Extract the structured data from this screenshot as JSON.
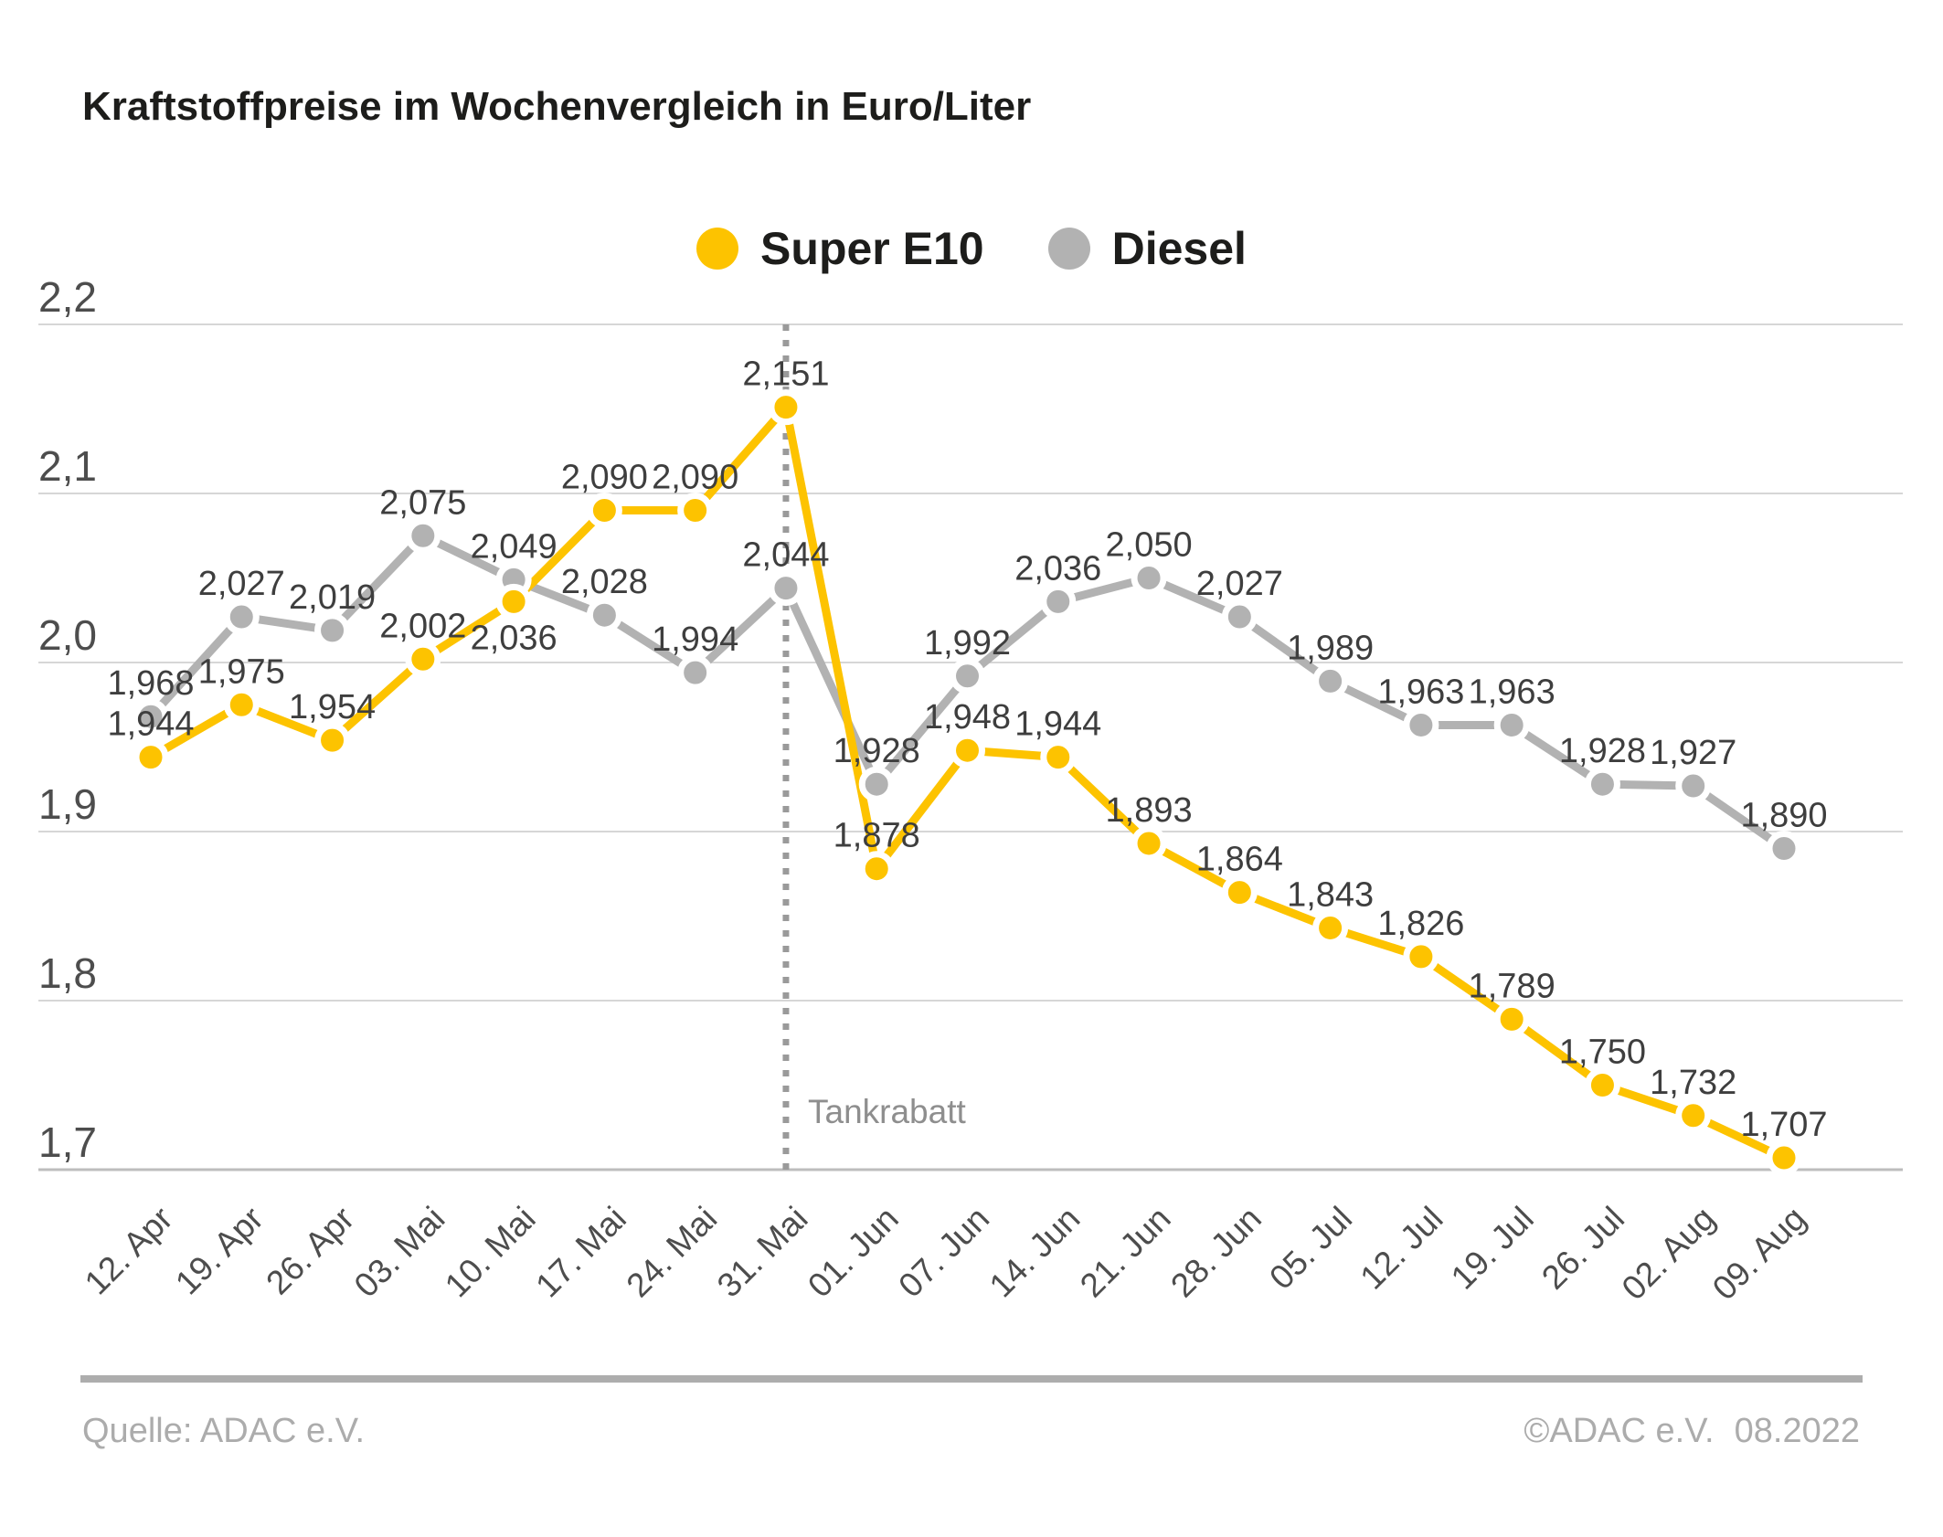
{
  "title": "Kraftstoffpreise im Wochenvergleich in Euro/Liter",
  "legend": {
    "items": [
      {
        "label": "Super E10",
        "color": "#fdc300"
      },
      {
        "label": "Diesel",
        "color": "#b2b2b2"
      }
    ]
  },
  "chart_data": {
    "type": "line",
    "title": "Kraftstoffpreise im Wochenvergleich in Euro/Liter",
    "xlabel": "",
    "ylabel": "Euro/Liter",
    "ylim": [
      1.7,
      2.2
    ],
    "grid": true,
    "legend_position": "top-center",
    "y_ticks": [
      "2,2",
      "2,1",
      "2,0",
      "1,9",
      "1,8",
      "1,7"
    ],
    "y_tick_values": [
      2.2,
      2.1,
      2.0,
      1.9,
      1.8,
      1.7
    ],
    "categories": [
      "12. Apr",
      "19. Apr",
      "26. Apr",
      "03. Mai",
      "10. Mai",
      "17. Mai",
      "24. Mai",
      "31. Mai",
      "01. Jun",
      "07. Jun",
      "14. Jun",
      "21. Jun",
      "28. Jun",
      "05. Jul",
      "12. Jul",
      "19. Jul",
      "26. Jul",
      "02. Aug",
      "09. Aug"
    ],
    "series": [
      {
        "name": "Diesel",
        "color": "#b2b2b2",
        "values": [
          1.968,
          2.027,
          2.019,
          2.075,
          2.049,
          2.028,
          1.994,
          2.044,
          1.928,
          1.992,
          2.036,
          2.05,
          2.027,
          1.989,
          1.963,
          1.963,
          1.928,
          1.927,
          1.89
        ],
        "label_below": []
      },
      {
        "name": "Super E10",
        "color": "#fdc300",
        "values": [
          1.944,
          1.975,
          1.954,
          2.002,
          2.036,
          2.09,
          2.09,
          2.151,
          1.878,
          1.948,
          1.944,
          1.893,
          1.864,
          1.843,
          1.826,
          1.789,
          1.75,
          1.732,
          1.707
        ],
        "label_below": [
          4
        ]
      }
    ],
    "annotation": {
      "label": "Tankrabatt",
      "at_category": "31. Mai"
    },
    "decimal_separator": ","
  },
  "footer": {
    "source": "Quelle: ADAC e.V.",
    "copyright": "©ADAC e.V.",
    "date": "08.2022"
  }
}
